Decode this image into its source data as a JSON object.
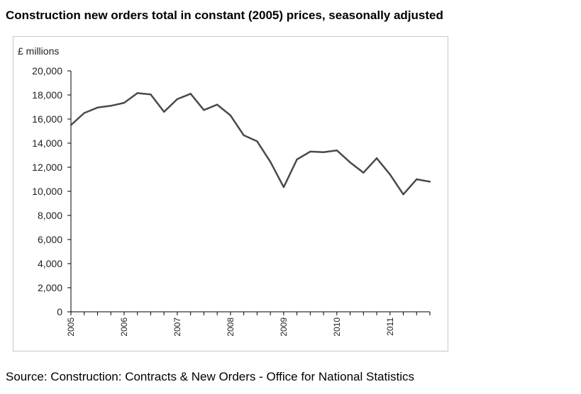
{
  "title": "Construction new orders total in constant (2005) prices, seasonally adjusted",
  "source": "Source: Construction: Contracts & New Orders - Office for National Statistics",
  "chart_data": {
    "type": "line",
    "title": "Construction new orders total in constant (2005) prices, seasonally adjusted",
    "ylabel": "£ millions",
    "xlabel": "",
    "ylim": [
      0,
      20000
    ],
    "yticks": [
      "0",
      "2,000",
      "4,000",
      "6,000",
      "8,000",
      "10,000",
      "12,000",
      "14,000",
      "16,000",
      "18,000",
      "20,000"
    ],
    "year_labels": [
      "2005",
      "2006",
      "2007",
      "2008",
      "2009",
      "2010",
      "2011"
    ],
    "periods_per_year": 4,
    "grid": false,
    "legend": "none",
    "line_color": "#4a4a4a",
    "series": [
      {
        "values": [
          15500,
          16500,
          16950,
          17100,
          17350,
          18150,
          18050,
          16600,
          17650,
          18100,
          16750,
          17200,
          16300,
          14650,
          14150,
          12450,
          10350,
          12650,
          13300,
          13250,
          13400,
          12400,
          11550,
          12750,
          11400,
          9750,
          11000,
          10800
        ]
      }
    ]
  }
}
